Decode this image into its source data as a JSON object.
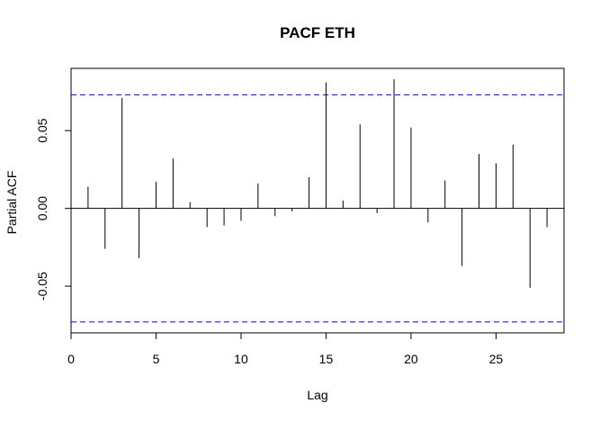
{
  "chart_data": {
    "type": "bar",
    "title": "PACF ETH",
    "xlabel": "Lag",
    "ylabel": "Partial ACF",
    "xlim": [
      0,
      29
    ],
    "ylim": [
      -0.08,
      0.09
    ],
    "x_ticks": [
      {
        "value": 0,
        "label": "0"
      },
      {
        "value": 5,
        "label": "5"
      },
      {
        "value": 10,
        "label": "10"
      },
      {
        "value": 15,
        "label": "15"
      },
      {
        "value": 20,
        "label": "20"
      },
      {
        "value": 25,
        "label": "25"
      }
    ],
    "y_ticks": [
      {
        "value": -0.05,
        "label": "-0.05"
      },
      {
        "value": 0.0,
        "label": "0.00"
      },
      {
        "value": 0.05,
        "label": "0.05"
      }
    ],
    "confidence_bounds": [
      0.073,
      -0.073
    ],
    "bound_color": "#0000ff",
    "line_color": "#000000",
    "lags": [
      1,
      2,
      3,
      4,
      5,
      6,
      7,
      8,
      9,
      10,
      11,
      12,
      13,
      14,
      15,
      16,
      17,
      18,
      19,
      20,
      21,
      22,
      23,
      24,
      25,
      26,
      27,
      28
    ],
    "values": [
      0.014,
      -0.026,
      0.071,
      -0.032,
      0.017,
      0.032,
      0.004,
      -0.012,
      -0.011,
      -0.008,
      0.016,
      -0.005,
      -0.002,
      0.02,
      0.081,
      0.005,
      0.054,
      -0.003,
      0.083,
      0.052,
      -0.009,
      0.018,
      -0.037,
      0.035,
      0.029,
      0.041,
      -0.051,
      -0.012
    ]
  }
}
